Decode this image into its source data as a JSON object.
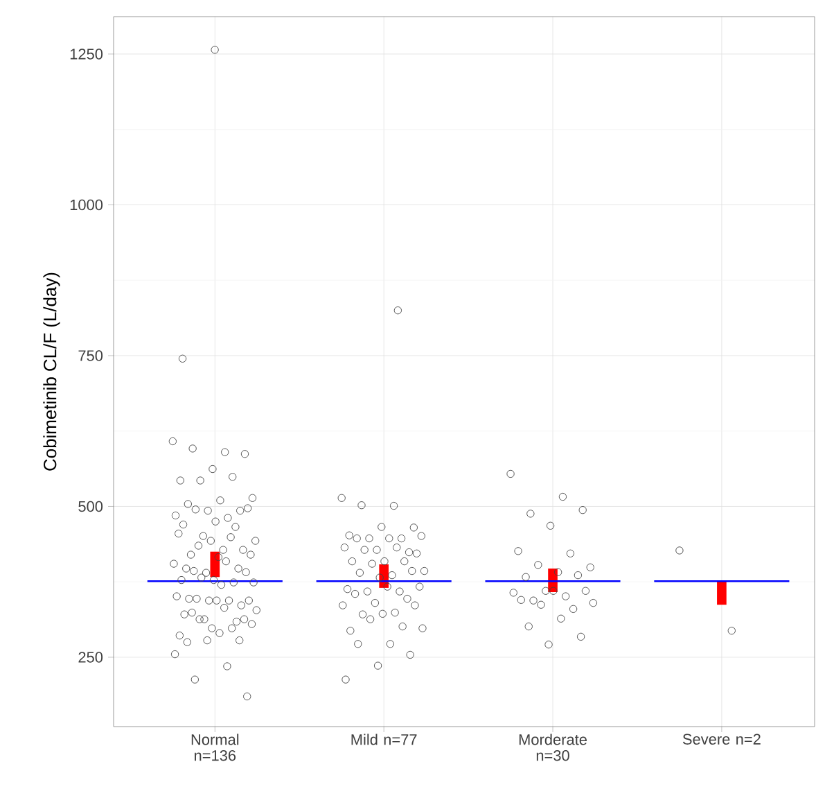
{
  "chart_data": {
    "type": "scatter",
    "ylabel": "Cobimetinib CL/F (L/day)",
    "categories": [
      "Normal n=136",
      "Mild n=77",
      "Morderate n=30",
      "Severe n=2"
    ],
    "ylim": [
      135,
      1312
    ],
    "yticks": [
      250,
      500,
      750,
      1000,
      1250
    ],
    "grid": true,
    "marker": "circle",
    "series": [
      {
        "color": "#444444",
        "x": [
          "Normal n=136",
          "Normal n=136",
          "Normal n=136",
          "Normal n=136",
          "Normal n=136",
          "Normal n=136",
          "Normal n=136",
          "Normal n=136",
          "Normal n=136",
          "Normal n=136",
          "Normal n=136",
          "Normal n=136",
          "Normal n=136",
          "Normal n=136",
          "Normal n=136",
          "Normal n=136",
          "Normal n=136",
          "Normal n=136",
          "Normal n=136",
          "Normal n=136",
          "Normal n=136",
          "Normal n=136",
          "Normal n=136",
          "Normal n=136",
          "Normal n=136",
          "Normal n=136",
          "Normal n=136",
          "Normal n=136",
          "Normal n=136",
          "Normal n=136",
          "Normal n=136",
          "Normal n=136",
          "Normal n=136",
          "Normal n=136",
          "Normal n=136",
          "Normal n=136",
          "Normal n=136",
          "Normal n=136",
          "Normal n=136",
          "Normal n=136",
          "Normal n=136",
          "Normal n=136",
          "Normal n=136",
          "Normal n=136",
          "Normal n=136",
          "Normal n=136",
          "Normal n=136",
          "Normal n=136",
          "Normal n=136",
          "Normal n=136",
          "Normal n=136",
          "Normal n=136",
          "Normal n=136",
          "Normal n=136",
          "Normal n=136",
          "Normal n=136",
          "Normal n=136",
          "Normal n=136",
          "Normal n=136",
          "Normal n=136",
          "Normal n=136",
          "Normal n=136",
          "Normal n=136",
          "Normal n=136",
          "Normal n=136",
          "Normal n=136",
          "Normal n=136",
          "Normal n=136",
          "Normal n=136",
          "Normal n=136",
          "Normal n=136",
          "Normal n=136",
          "Normal n=136",
          "Normal n=136",
          "Mild n=77",
          "Mild n=77",
          "Mild n=77",
          "Mild n=77",
          "Mild n=77",
          "Mild n=77",
          "Mild n=77",
          "Mild n=77",
          "Mild n=77",
          "Mild n=77",
          "Mild n=77",
          "Mild n=77",
          "Mild n=77",
          "Mild n=77",
          "Mild n=77",
          "Mild n=77",
          "Mild n=77",
          "Mild n=77",
          "Mild n=77",
          "Mild n=77",
          "Mild n=77",
          "Mild n=77",
          "Mild n=77",
          "Mild n=77",
          "Mild n=77",
          "Mild n=77",
          "Mild n=77",
          "Mild n=77",
          "Mild n=77",
          "Mild n=77",
          "Mild n=77",
          "Mild n=77",
          "Mild n=77",
          "Mild n=77",
          "Mild n=77",
          "Mild n=77",
          "Mild n=77",
          "Mild n=77",
          "Mild n=77",
          "Mild n=77",
          "Mild n=77",
          "Mild n=77",
          "Mild n=77",
          "Mild n=77",
          "Mild n=77",
          "Mild n=77",
          "Mild n=77",
          "Mild n=77",
          "Mild n=77",
          "Morderate n=30",
          "Morderate n=30",
          "Morderate n=30",
          "Morderate n=30",
          "Morderate n=30",
          "Morderate n=30",
          "Morderate n=30",
          "Morderate n=30",
          "Morderate n=30",
          "Morderate n=30",
          "Morderate n=30",
          "Morderate n=30",
          "Morderate n=30",
          "Morderate n=30",
          "Morderate n=30",
          "Morderate n=30",
          "Morderate n=30",
          "Morderate n=30",
          "Morderate n=30",
          "Morderate n=30",
          "Morderate n=30",
          "Morderate n=30",
          "Morderate n=30",
          "Morderate n=30",
          "Morderate n=30",
          "Morderate n=30",
          "Severe n=2",
          "Severe n=2"
        ],
        "values": [
          608,
          590,
          596,
          587,
          562,
          543,
          549,
          543,
          514,
          510,
          504,
          493,
          493,
          485,
          481,
          495,
          497,
          475,
          470,
          466,
          451,
          443,
          428,
          420,
          428,
          443,
          455,
          449,
          435,
          420,
          416,
          397,
          397,
          390,
          405,
          409,
          393,
          391,
          378,
          378,
          374,
          382,
          374,
          370,
          347,
          336,
          344,
          351,
          344,
          347,
          344,
          344,
          321,
          309,
          313,
          328,
          332,
          324,
          313,
          298,
          286,
          298,
          313,
          305,
          290,
          275,
          278,
          278,
          255,
          235,
          213,
          185,
          1257,
          745,
          514,
          501,
          502,
          465,
          466,
          452,
          447,
          447,
          451,
          447,
          447,
          424,
          428,
          432,
          432,
          428,
          422,
          409,
          409,
          409,
          405,
          393,
          386,
          390,
          393,
          382,
          363,
          359,
          359,
          367,
          367,
          355,
          347,
          340,
          336,
          324,
          321,
          336,
          322,
          294,
          301,
          313,
          298,
          272,
          272,
          254,
          236,
          213,
          825,
          554,
          516,
          488,
          494,
          468,
          426,
          422,
          403,
          399,
          391,
          383,
          386,
          360,
          357,
          351,
          344,
          360,
          360,
          345,
          330,
          337,
          340,
          314,
          301,
          284,
          271,
          427,
          294
        ]
      },
      {
        "type": "bar",
        "color": "#ff0000",
        "base": [
          383,
          365,
          358,
          337
        ],
        "values": [
          42,
          39,
          39,
          39
        ]
      }
    ],
    "ref_lines": [
      {
        "axis": "y",
        "value": 376,
        "color": "#0000ff"
      }
    ]
  }
}
